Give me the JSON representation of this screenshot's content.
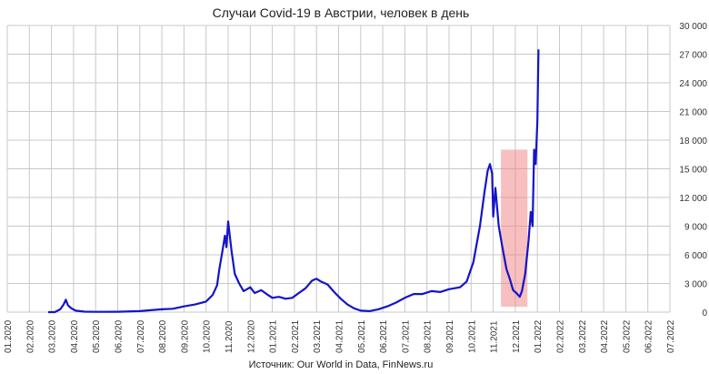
{
  "chart_data": {
    "type": "line",
    "title": "Случаи Covid-19 в Австрии, человек в день",
    "source": "Источник: Our World in Data, FinNews.ru",
    "xlabel": "",
    "ylabel": "",
    "ylim": [
      0,
      30000
    ],
    "y_axis_side": "right",
    "y_ticks": [
      "30 000",
      "27 000",
      "24 000",
      "21 000",
      "18 000",
      "15 000",
      "12 000",
      "9 000",
      "6 000",
      "3 000",
      "0"
    ],
    "x_ticks": [
      "01.2020",
      "02.2020",
      "03.2020",
      "04.2020",
      "05.2020",
      "06.2020",
      "07.2020",
      "08.2020",
      "09.2020",
      "10.2020",
      "11.2020",
      "12.2020",
      "01.2021",
      "02.2021",
      "03.2021",
      "04.2021",
      "05.2021",
      "06.2021",
      "07.2021",
      "08.2021",
      "09.2021",
      "10.2021",
      "11.2021",
      "12.2021",
      "01.2022",
      "02.2022",
      "03.2022",
      "04.2022",
      "05.2022",
      "06.2022",
      "07.2022"
    ],
    "grid": true,
    "highlight": {
      "x_start": 22.35,
      "x_end": 23.55,
      "y_top": 17000
    },
    "series": [
      {
        "color": "#1414c8",
        "points": [
          [
            1.85,
            0
          ],
          [
            2.15,
            0
          ],
          [
            2.4,
            300
          ],
          [
            2.55,
            800
          ],
          [
            2.65,
            1300
          ],
          [
            2.75,
            700
          ],
          [
            2.9,
            400
          ],
          [
            3.1,
            150
          ],
          [
            3.5,
            50
          ],
          [
            4.0,
            30
          ],
          [
            5.0,
            40
          ],
          [
            6.0,
            100
          ],
          [
            6.5,
            200
          ],
          [
            7.0,
            300
          ],
          [
            7.5,
            350
          ],
          [
            8.0,
            600
          ],
          [
            8.5,
            800
          ],
          [
            9.0,
            1100
          ],
          [
            9.3,
            1800
          ],
          [
            9.5,
            2800
          ],
          [
            9.6,
            4500
          ],
          [
            9.75,
            6500
          ],
          [
            9.85,
            8000
          ],
          [
            9.92,
            6800
          ],
          [
            10.0,
            9500
          ],
          [
            10.05,
            8500
          ],
          [
            10.15,
            6500
          ],
          [
            10.3,
            4000
          ],
          [
            10.5,
            3000
          ],
          [
            10.7,
            2200
          ],
          [
            11.0,
            2600
          ],
          [
            11.2,
            2000
          ],
          [
            11.5,
            2300
          ],
          [
            11.8,
            1800
          ],
          [
            12.0,
            1500
          ],
          [
            12.3,
            1600
          ],
          [
            12.6,
            1400
          ],
          [
            12.9,
            1500
          ],
          [
            13.2,
            2000
          ],
          [
            13.5,
            2500
          ],
          [
            13.8,
            3300
          ],
          [
            14.0,
            3500
          ],
          [
            14.2,
            3200
          ],
          [
            14.5,
            2900
          ],
          [
            14.8,
            2100
          ],
          [
            15.1,
            1400
          ],
          [
            15.4,
            800
          ],
          [
            15.7,
            400
          ],
          [
            16.0,
            150
          ],
          [
            16.4,
            100
          ],
          [
            16.8,
            300
          ],
          [
            17.2,
            600
          ],
          [
            17.6,
            1000
          ],
          [
            18.0,
            1500
          ],
          [
            18.4,
            1900
          ],
          [
            18.8,
            1900
          ],
          [
            19.2,
            2200
          ],
          [
            19.6,
            2100
          ],
          [
            20.0,
            2400
          ],
          [
            20.5,
            2600
          ],
          [
            20.8,
            3200
          ],
          [
            21.1,
            5200
          ],
          [
            21.4,
            9000
          ],
          [
            21.6,
            12500
          ],
          [
            21.75,
            14800
          ],
          [
            21.85,
            15500
          ],
          [
            21.95,
            14500
          ],
          [
            22.0,
            10000
          ],
          [
            22.1,
            13000
          ],
          [
            22.25,
            9000
          ],
          [
            22.4,
            7000
          ],
          [
            22.6,
            4500
          ],
          [
            22.75,
            3500
          ],
          [
            22.9,
            2300
          ],
          [
            23.05,
            2000
          ],
          [
            23.2,
            1600
          ],
          [
            23.3,
            2200
          ],
          [
            23.45,
            4000
          ],
          [
            23.6,
            7500
          ],
          [
            23.7,
            10500
          ],
          [
            23.78,
            9000
          ],
          [
            23.85,
            17000
          ],
          [
            23.92,
            15500
          ],
          [
            24.0,
            20000
          ],
          [
            24.05,
            27500
          ]
        ]
      }
    ]
  }
}
